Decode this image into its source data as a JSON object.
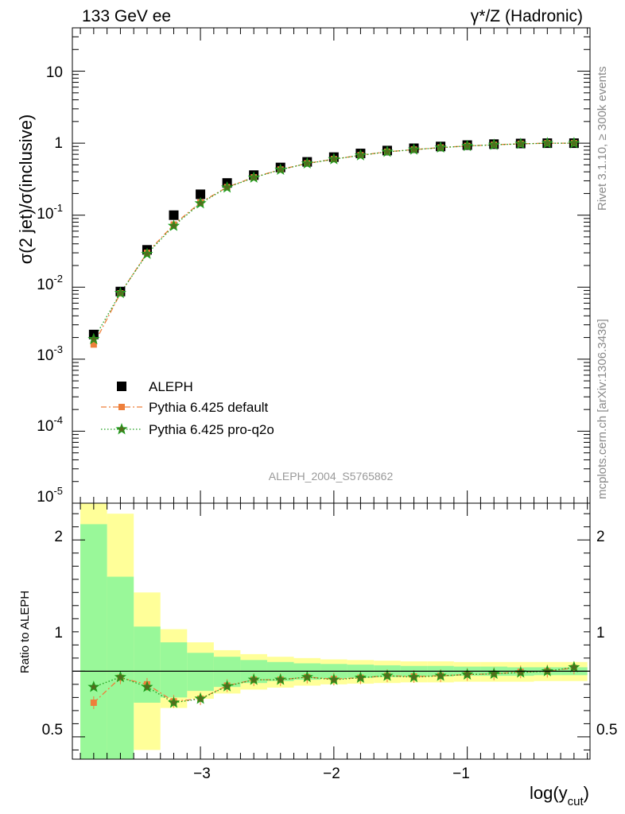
{
  "header": {
    "left_title": "133 GeV ee",
    "right_title": "γ*/Z (Hadronic)"
  },
  "side_labels": {
    "rivet": "Rivet 3.1.10, ≥ 300k events",
    "mcplots": "mcplots.cern.ch [arXiv:1306.3436]"
  },
  "analysis_tag": "ALEPH_2004_S5765862",
  "chart_data": [
    {
      "type": "scatter",
      "ylabel": "σ(2 jet)/σ(inclusive)",
      "yscale": "log",
      "ylim": [
        1e-05,
        40
      ],
      "xlim": [
        -3.96,
        -0.08
      ],
      "ytick_labels": [
        {
          "mantissa": "10",
          "exp": "-5",
          "value": 1e-05
        },
        {
          "mantissa": "10",
          "exp": "-4",
          "value": 0.0001
        },
        {
          "mantissa": "10",
          "exp": "-3",
          "value": 0.001
        },
        {
          "mantissa": "10",
          "exp": "-2",
          "value": 0.01
        },
        {
          "mantissa": "10",
          "exp": "-1",
          "value": 0.1
        },
        {
          "mantissa": "1",
          "exp": "",
          "value": 1
        },
        {
          "mantissa": "10",
          "exp": "",
          "value": 10
        }
      ],
      "legend_position": "lower-left",
      "x": [
        -3.8,
        -3.6,
        -3.4,
        -3.2,
        -3.0,
        -2.8,
        -2.6,
        -2.4,
        -2.2,
        -2.0,
        -1.8,
        -1.6,
        -1.4,
        -1.2,
        -1.0,
        -0.8,
        -0.6,
        -0.4,
        -0.2
      ],
      "series": [
        {
          "name": "ALEPH",
          "color": "#000000",
          "marker": "square",
          "values": [
            0.0022,
            0.0087,
            0.033,
            0.1,
            0.195,
            0.28,
            0.36,
            0.46,
            0.55,
            0.64,
            0.72,
            0.79,
            0.85,
            0.9,
            0.94,
            0.97,
            0.99,
            1.0,
            1.0
          ]
        },
        {
          "name": "Pythia 6.425 default",
          "color": "#ee7f3b",
          "marker": "square",
          "line": "dashdot",
          "values": [
            0.0016,
            0.0082,
            0.03,
            0.074,
            0.15,
            0.245,
            0.335,
            0.43,
            0.525,
            0.6,
            0.68,
            0.76,
            0.815,
            0.87,
            0.915,
            0.95,
            0.98,
            1.0,
            1.0
          ]
        },
        {
          "name": "Pythia 6.425 pro-q2o",
          "color": "#1a9e1a",
          "marker": "star",
          "line": "dotted",
          "values": [
            0.0019,
            0.0083,
            0.029,
            0.071,
            0.146,
            0.242,
            0.332,
            0.428,
            0.522,
            0.598,
            0.678,
            0.758,
            0.813,
            0.868,
            0.913,
            0.948,
            0.978,
            0.999,
            1.0
          ]
        }
      ]
    },
    {
      "type": "scatter",
      "ylabel": "Ratio to ALEPH",
      "xlabel_main": "log(y",
      "xlabel_sub": "cut",
      "xlabel_close": ")",
      "xlim": [
        -3.96,
        -0.08
      ],
      "ylim": [
        0.33,
        2.28
      ],
      "xticks": [
        -3,
        -2,
        -1
      ],
      "xtick_labels": [
        "−3",
        "−2",
        "−1"
      ],
      "yticks": [
        0.5,
        1,
        2
      ],
      "ytick_labels": [
        "0.5",
        "1",
        "2"
      ],
      "reference_line": 1,
      "x": [
        -3.8,
        -3.6,
        -3.4,
        -3.2,
        -3.0,
        -2.8,
        -2.6,
        -2.4,
        -2.2,
        -2.0,
        -1.8,
        -1.6,
        -1.4,
        -1.2,
        -1.0,
        -0.8,
        -0.6,
        -0.4,
        -0.2
      ],
      "bin_edges": [
        -3.9,
        -3.7,
        -3.5,
        -3.3,
        -3.1,
        -2.9,
        -2.7,
        -2.5,
        -2.3,
        -2.1,
        -1.9,
        -1.7,
        -1.5,
        -1.3,
        -1.1,
        -0.9,
        -0.7,
        -0.5,
        -0.3,
        -0.1
      ],
      "stat_band": {
        "color": "#99f899",
        "lower": [
          0.33,
          0.33,
          0.76,
          0.8,
          0.85,
          0.88,
          0.91,
          0.925,
          0.935,
          0.945,
          0.95,
          0.955,
          0.96,
          0.96,
          0.965,
          0.965,
          0.965,
          0.97,
          0.97
        ],
        "upper": [
          2.12,
          1.72,
          1.34,
          1.22,
          1.14,
          1.11,
          1.085,
          1.07,
          1.06,
          1.055,
          1.05,
          1.045,
          1.04,
          1.04,
          1.035,
          1.035,
          1.03,
          1.03,
          1.03
        ]
      },
      "total_band": {
        "color": "#ffff99",
        "lower": [
          0.33,
          0.33,
          0.4,
          0.72,
          0.79,
          0.83,
          0.86,
          0.875,
          0.89,
          0.9,
          0.905,
          0.91,
          0.915,
          0.915,
          0.92,
          0.92,
          0.92,
          0.925,
          0.925
        ],
        "upper": [
          2.28,
          2.2,
          1.6,
          1.32,
          1.22,
          1.16,
          1.13,
          1.11,
          1.1,
          1.09,
          1.085,
          1.08,
          1.075,
          1.075,
          1.07,
          1.07,
          1.07,
          1.07,
          1.07
        ]
      },
      "series": [
        {
          "name": "Pythia 6.425 default",
          "color": "#ee7f3b",
          "marker": "square",
          "line": "dashdot",
          "values": [
            0.76,
            0.95,
            0.9,
            0.77,
            0.79,
            0.89,
            0.935,
            0.935,
            0.955,
            0.94,
            0.95,
            0.965,
            0.96,
            0.965,
            0.975,
            0.98,
            0.995,
            1.0,
            1.025
          ]
        },
        {
          "name": "Pythia 6.425 pro-q2o",
          "color": "#1a9e1a",
          "marker": "star",
          "line": "dotted",
          "values": [
            0.88,
            0.955,
            0.88,
            0.76,
            0.79,
            0.885,
            0.935,
            0.935,
            0.955,
            0.935,
            0.95,
            0.965,
            0.955,
            0.965,
            0.975,
            0.98,
            0.99,
            1.0,
            1.03
          ]
        }
      ]
    }
  ]
}
